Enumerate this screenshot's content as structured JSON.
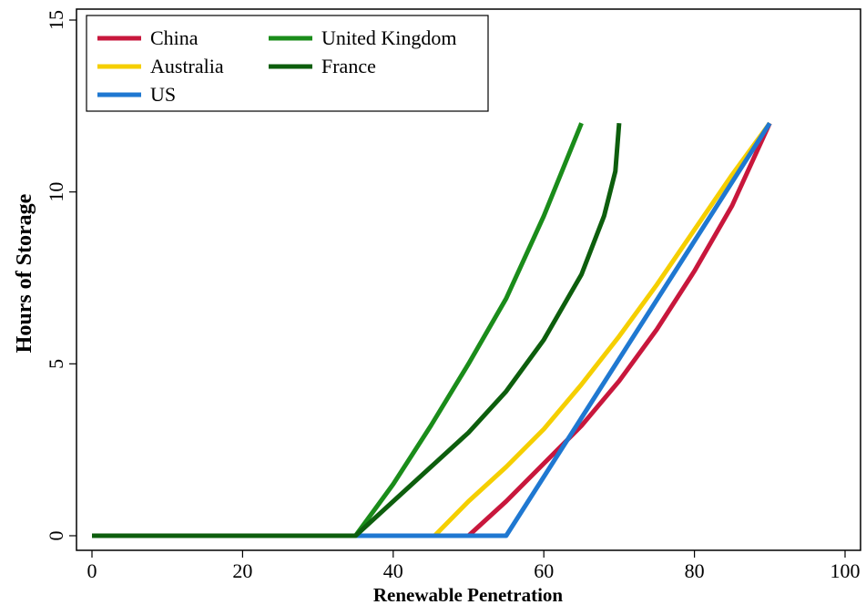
{
  "chart_data": {
    "type": "line",
    "x_label": "Renewable Penetration",
    "y_label": "Hours of Storage",
    "xlim": [
      0,
      100
    ],
    "xticks": [
      0,
      20,
      40,
      60,
      80,
      100
    ],
    "ylim": [
      0,
      15
    ],
    "yticks": [
      0,
      5,
      10,
      15
    ],
    "legend": "upper left",
    "series": [
      {
        "name": "China",
        "color": "#c8173c",
        "x": [
          0,
          50,
          55,
          60,
          65,
          70,
          75,
          80,
          85,
          90
        ],
        "values": [
          0,
          0,
          1,
          2.1,
          3.2,
          4.5,
          6,
          7.7,
          9.6,
          12
        ]
      },
      {
        "name": "Australia",
        "color": "#f5cf00",
        "x": [
          0,
          45.5,
          50,
          55,
          60,
          65,
          70,
          75,
          80,
          85,
          90
        ],
        "values": [
          0,
          0,
          1,
          2,
          3.1,
          4.4,
          5.8,
          7.3,
          8.9,
          10.5,
          12
        ]
      },
      {
        "name": "US",
        "color": "#1f78d1",
        "x": [
          0,
          55,
          90
        ],
        "values": [
          0,
          0,
          12
        ]
      },
      {
        "name": "United Kingdom",
        "color": "#1a8c1a",
        "x": [
          0,
          35,
          40,
          45,
          50,
          55,
          60,
          65
        ],
        "values": [
          0,
          0,
          1.5,
          3.2,
          5,
          6.9,
          9.3,
          12
        ]
      },
      {
        "name": "France",
        "color": "#0d5e0d",
        "x": [
          0,
          35,
          40,
          45,
          50,
          55,
          60,
          65,
          68,
          69.5,
          70
        ],
        "values": [
          0,
          0,
          1,
          2,
          3,
          4.2,
          5.7,
          7.6,
          9.3,
          10.6,
          12
        ]
      }
    ]
  }
}
